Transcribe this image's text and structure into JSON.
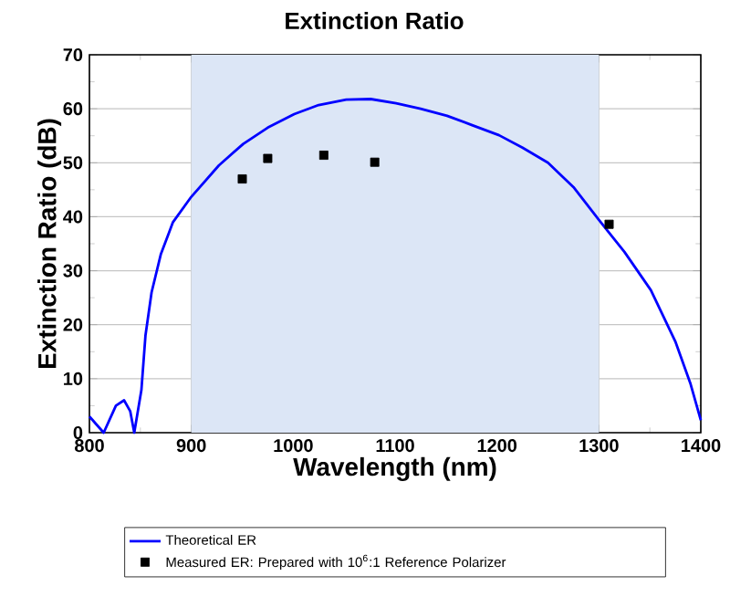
{
  "chart_data": {
    "type": "line",
    "title": "Extinction Ratio",
    "xlabel": "Wavelength (nm)",
    "ylabel": "Extinction Ratio (dB)",
    "xlim": [
      800,
      1400
    ],
    "xticks": [
      800,
      900,
      1000,
      1100,
      1200,
      1300,
      1400
    ],
    "ylim": [
      0,
      70
    ],
    "yticks": [
      0,
      10,
      20,
      30,
      40,
      50,
      60,
      70
    ],
    "grid": true,
    "legend": "bottom",
    "bands": [
      {
        "axis": "x",
        "from": 900,
        "to": 1300,
        "color": "#dce6f6"
      }
    ],
    "series": [
      {
        "name": "Theoretical ER",
        "color": "#0000ff",
        "marker": "none",
        "x": [
          800,
          814,
          826,
          834,
          840,
          842,
          844,
          851,
          855,
          861,
          870,
          882,
          900,
          927,
          951,
          975,
          1001,
          1025,
          1052,
          1076,
          1101,
          1125,
          1151,
          1175,
          1202,
          1225,
          1250,
          1275,
          1300,
          1325,
          1351,
          1375,
          1390,
          1400
        ],
        "values": [
          3,
          0,
          5,
          6,
          4,
          2,
          0,
          7.9,
          18,
          26,
          33,
          39,
          43.7,
          49.5,
          53.5,
          56.5,
          59,
          60.7,
          61.7,
          61.8,
          61,
          60,
          58.7,
          57,
          55.1,
          52.8,
          50,
          45.5,
          39.4,
          33.5,
          26.4,
          16.9,
          9,
          2.3
        ]
      },
      {
        "name": "Measured ER: Prepared with 10$^{6}$:1 Reference Polarizer",
        "type": "scatter",
        "color": "#000000",
        "marker": "square",
        "x": [
          950,
          975,
          1030,
          1080,
          1310
        ],
        "values": [
          47,
          50.8,
          51.4,
          50.1,
          38.6
        ]
      }
    ]
  }
}
